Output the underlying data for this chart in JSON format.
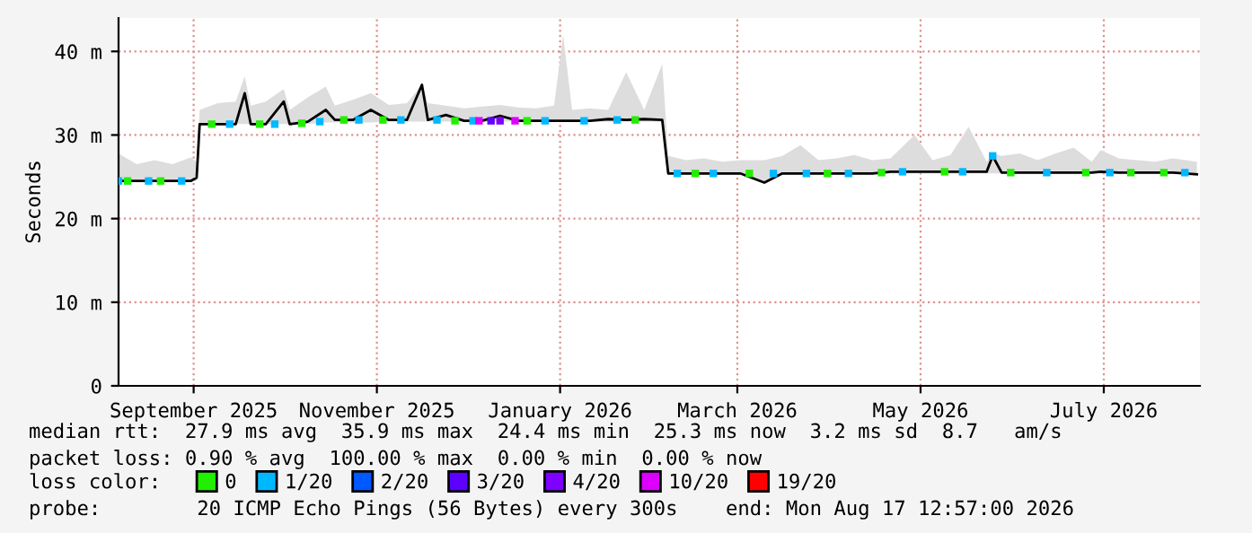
{
  "chart_data": {
    "type": "line",
    "ylabel": "Seconds",
    "legend_title": "loss color:",
    "legend": "bottom",
    "grid": true,
    "marker": "square",
    "line_style": "solid",
    "xlim": [
      "2025-08-22",
      "2026-08-17"
    ],
    "xticks": [
      {
        "value": "2025-09-16",
        "label": "September 2025"
      },
      {
        "value": "2025-11-16",
        "label": "November 2025"
      },
      {
        "value": "2026-01-16",
        "label": "January 2026"
      },
      {
        "value": "2026-03-16",
        "label": "March 2026"
      },
      {
        "value": "2026-05-16",
        "label": "May 2026"
      },
      {
        "value": "2026-07-16",
        "label": "July 2026"
      }
    ],
    "ylim": [
      0,
      44
    ],
    "yticks": [
      0,
      {
        "value": 10,
        "label": "10 m"
      },
      {
        "value": 20,
        "label": "20 m"
      },
      {
        "value": 30,
        "label": "30 m"
      },
      {
        "value": 40,
        "label": "40 m"
      }
    ],
    "annotations": [
      "median rtt:  27.9 ms avg  35.9 ms max  24.4 ms min  25.3 ms now  3.2 ms sd  8.7   am/s",
      "packet loss: 0.90 % avg  100.00 % max  0.00 % min  0.00 % now",
      "probe:        20 ICMP Echo Pings (56 Bytes) every 300s",
      "end: Mon Aug 17 12:57:00 2026"
    ],
    "series": [
      {
        "color": "#000000",
        "marker": "none",
        "x": [
          "2025-08-22",
          "2025-08-28",
          "2025-09-03",
          "2025-09-09",
          "2025-09-15",
          "2025-09-17",
          "2025-09-18",
          "2025-09-24",
          "2025-09-30",
          "2025-10-03",
          "2025-10-05",
          "2025-10-10",
          "2025-10-16",
          "2025-10-18",
          "2025-10-24",
          "2025-10-30",
          "2025-11-02",
          "2025-11-08",
          "2025-11-14",
          "2025-11-20",
          "2025-11-26",
          "2025-12-01",
          "2025-12-03",
          "2025-12-09",
          "2025-12-15",
          "2025-12-21",
          "2025-12-27",
          "2026-01-02",
          "2026-01-08",
          "2026-01-14",
          "2026-01-17",
          "2026-01-20",
          "2026-01-26",
          "2026-02-01",
          "2026-02-07",
          "2026-02-13",
          "2026-02-19",
          "2026-02-21",
          "2026-02-27",
          "2026-03-05",
          "2026-03-11",
          "2026-03-17",
          "2026-03-25",
          "2026-03-31",
          "2026-04-06",
          "2026-04-12",
          "2026-04-18",
          "2026-04-24",
          "2026-04-30",
          "2026-05-06",
          "2026-05-14",
          "2026-05-20",
          "2026-05-26",
          "2026-06-01",
          "2026-06-07",
          "2026-06-09",
          "2026-06-12",
          "2026-06-18",
          "2026-06-24",
          "2026-06-30",
          "2026-07-06",
          "2026-07-12",
          "2026-07-15",
          "2026-07-21",
          "2026-07-27",
          "2026-08-02",
          "2026-08-08",
          "2026-08-16"
        ],
        "values": [
          24.5,
          24.5,
          24.5,
          24.5,
          24.5,
          24.9,
          31.3,
          31.3,
          31.3,
          35.0,
          31.3,
          31.3,
          34.0,
          31.3,
          31.6,
          33.0,
          31.8,
          31.8,
          33.0,
          31.8,
          31.8,
          36.0,
          31.8,
          32.4,
          31.7,
          31.7,
          32.3,
          31.7,
          31.7,
          31.7,
          31.7,
          31.7,
          31.7,
          31.9,
          31.8,
          31.9,
          31.8,
          25.4,
          25.4,
          25.4,
          25.4,
          25.4,
          24.3,
          25.4,
          25.4,
          25.4,
          25.4,
          25.4,
          25.4,
          25.6,
          25.6,
          25.6,
          25.6,
          25.6,
          25.6,
          27.5,
          25.5,
          25.5,
          25.5,
          25.5,
          25.5,
          25.5,
          25.6,
          25.5,
          25.5,
          25.5,
          25.5,
          25.3
        ],
        "lower": [
          24.5,
          24.5,
          24.5,
          24.5,
          24.5,
          24.5,
          31.3,
          31.3,
          31.3,
          31.3,
          31.3,
          31.3,
          31.3,
          31.3,
          31.3,
          31.5,
          31.5,
          31.5,
          31.5,
          31.6,
          31.6,
          31.6,
          31.6,
          31.6,
          31.6,
          31.6,
          31.6,
          31.6,
          31.6,
          31.6,
          31.6,
          31.6,
          31.6,
          31.6,
          31.6,
          31.6,
          31.6,
          25.3,
          25.3,
          25.3,
          25.3,
          25.3,
          24.3,
          25.3,
          25.3,
          25.3,
          25.3,
          25.3,
          25.3,
          25.4,
          25.4,
          25.4,
          25.4,
          25.4,
          25.4,
          25.4,
          25.4,
          25.4,
          25.4,
          25.4,
          25.4,
          25.4,
          25.4,
          25.4,
          25.4,
          25.4,
          25.4,
          25.3
        ],
        "upper": [
          27.8,
          26.5,
          27.0,
          26.5,
          27.3,
          26.8,
          33.0,
          33.8,
          34.0,
          37.0,
          33.5,
          34.0,
          35.5,
          33.0,
          34.5,
          35.8,
          33.5,
          34.2,
          35.0,
          33.6,
          33.8,
          36.0,
          33.8,
          33.5,
          33.2,
          33.4,
          33.6,
          33.3,
          33.2,
          33.5,
          42.0,
          33.0,
          33.2,
          33.0,
          37.5,
          33.0,
          38.5,
          27.5,
          27.0,
          27.2,
          26.8,
          27.0,
          27.0,
          27.5,
          28.8,
          27.0,
          27.2,
          27.6,
          27.0,
          27.2,
          30.0,
          27.0,
          27.6,
          31.0,
          26.8,
          27.8,
          27.5,
          27.8,
          27.0,
          27.8,
          28.5,
          26.8,
          28.2,
          27.2,
          27.0,
          26.8,
          27.2,
          26.8
        ]
      },
      {
        "type": "scatter",
        "name": "0",
        "color": "#22ee00",
        "x": [
          "2025-08-25",
          "2025-09-05",
          "2025-09-22",
          "2025-10-08",
          "2025-10-22",
          "2025-11-05",
          "2025-11-18",
          "2025-12-12",
          "2026-01-05",
          "2026-02-10",
          "2026-03-02",
          "2026-03-20",
          "2026-04-15",
          "2026-05-03",
          "2026-05-24",
          "2026-06-15",
          "2026-07-10",
          "2026-07-25",
          "2026-08-05"
        ],
        "values": [
          24.5,
          24.5,
          31.3,
          31.3,
          31.4,
          31.8,
          31.8,
          31.7,
          31.7,
          31.8,
          25.4,
          25.4,
          25.4,
          25.5,
          25.6,
          25.5,
          25.5,
          25.5,
          25.5
        ]
      },
      {
        "type": "scatter",
        "name": "1/20",
        "color": "#00b8ff",
        "x": [
          "2025-08-22",
          "2025-09-01",
          "2025-09-12",
          "2025-09-28",
          "2025-10-13",
          "2025-10-28",
          "2025-11-10",
          "2025-11-24",
          "2025-12-06",
          "2025-12-18",
          "2026-01-11",
          "2026-01-24",
          "2026-02-04",
          "2026-02-24",
          "2026-03-08",
          "2026-03-28",
          "2026-04-08",
          "2026-04-22",
          "2026-05-10",
          "2026-05-30",
          "2026-06-09",
          "2026-06-27",
          "2026-07-18",
          "2026-08-12"
        ],
        "values": [
          24.5,
          24.5,
          24.5,
          31.3,
          31.3,
          31.6,
          31.8,
          31.8,
          31.8,
          31.7,
          31.7,
          31.7,
          31.8,
          25.4,
          25.4,
          25.4,
          25.4,
          25.4,
          25.6,
          25.6,
          27.5,
          25.5,
          25.5,
          25.5
        ]
      },
      {
        "type": "scatter",
        "name": "2/20",
        "color": "#0059ff"
      },
      {
        "type": "scatter",
        "name": "3/20",
        "color": "#5e00ff",
        "x": [
          "2025-12-24"
        ],
        "values": [
          31.7
        ]
      },
      {
        "type": "scatter",
        "name": "4/20",
        "color": "#7e00ff",
        "x": [
          "2025-12-27"
        ],
        "values": [
          31.7
        ]
      },
      {
        "type": "scatter",
        "name": "10/20",
        "color": "#dd00ff",
        "x": [
          "2025-12-20",
          "2026-01-01"
        ],
        "values": [
          31.7,
          31.7
        ]
      },
      {
        "type": "scatter",
        "name": "19/20",
        "color": "#ff0000"
      }
    ]
  }
}
